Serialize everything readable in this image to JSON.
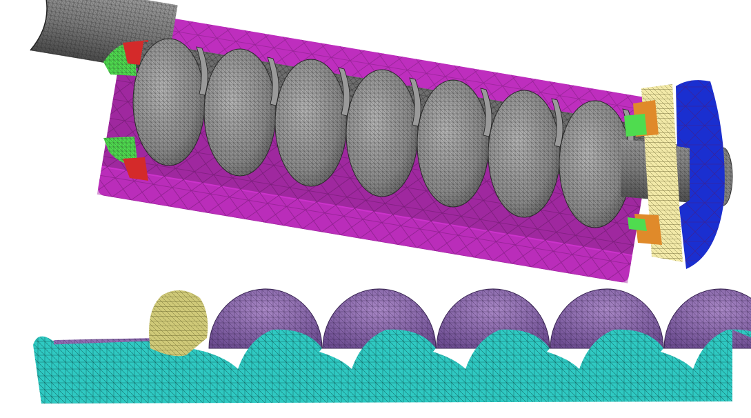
{
  "figure": {
    "top_view": {
      "colors": {
        "housing": "#cc33cc",
        "housing_edge": "#6a1a6a",
        "rotor": "#8c8c8c",
        "rotor_edge": "#1e1e1e",
        "shaft": "#7a7a7a",
        "end_plate": "#1a2fd0",
        "gasket": "#f2e9a8",
        "bearing": "#e08a2a",
        "seal_green": "#4fdc4f",
        "seal_red": "#d42a2a"
      },
      "lobe_count": 7
    },
    "bottom_view": {
      "colors": {
        "solid": "#2fc9c2",
        "solid_edge": "#0e5a57",
        "lobe": "#8f6bb0",
        "lobe_edge": "#3b2656",
        "tab": "#cfc978",
        "tab_edge": "#5a5520"
      },
      "lobe_count": 5
    }
  }
}
